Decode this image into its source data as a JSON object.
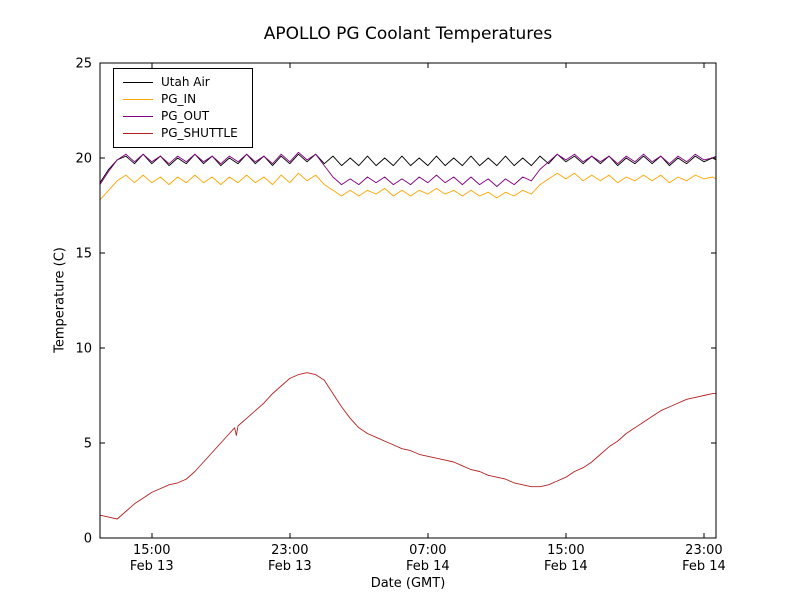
{
  "chart_data": {
    "type": "line",
    "title": "APOLLO PG Coolant Temperatures",
    "xlabel": "Date (GMT)",
    "ylabel": "Temperature (C)",
    "ylim": [
      0,
      25
    ],
    "y_ticks": [
      0,
      5,
      10,
      15,
      20,
      25
    ],
    "xlim_hours": [
      12.0,
      47.7
    ],
    "x_ticks": [
      {
        "hour": 15,
        "time": "15:00",
        "date": "Feb 13"
      },
      {
        "hour": 23,
        "time": "23:00",
        "date": "Feb 13"
      },
      {
        "hour": 31,
        "time": "07:00",
        "date": "Feb 14"
      },
      {
        "hour": 39,
        "time": "15:00",
        "date": "Feb 14"
      },
      {
        "hour": 47,
        "time": "23:00",
        "date": "Feb 14"
      }
    ],
    "grid": false,
    "legend_position": "upper-left",
    "axis_color": "#000000",
    "x_shared": [
      12.0,
      12.5,
      13.0,
      13.5,
      14.0,
      14.5,
      15.0,
      15.5,
      16.0,
      16.5,
      17.0,
      17.5,
      18.0,
      18.5,
      19.0,
      19.5,
      20.0,
      20.5,
      21.0,
      21.5,
      22.0,
      22.5,
      23.0,
      23.5,
      24.0,
      24.5,
      25.0,
      25.5,
      26.0,
      26.5,
      27.0,
      27.5,
      28.0,
      28.5,
      29.0,
      29.5,
      30.0,
      30.5,
      31.0,
      31.5,
      32.0,
      32.5,
      33.0,
      33.5,
      34.0,
      34.5,
      35.0,
      35.5,
      36.0,
      36.5,
      37.0,
      37.5,
      38.0,
      38.5,
      39.0,
      39.5,
      40.0,
      40.5,
      41.0,
      41.5,
      42.0,
      42.5,
      43.0,
      43.5,
      44.0,
      44.5,
      45.0,
      45.5,
      46.0,
      46.5,
      47.0,
      47.5,
      47.7
    ],
    "series": [
      {
        "name": "Utah Air",
        "color": "#000000",
        "y": [
          18.7,
          19.4,
          19.9,
          20.1,
          19.7,
          20.2,
          19.7,
          20.1,
          19.6,
          20.0,
          19.7,
          20.2,
          19.7,
          20.1,
          19.6,
          20.0,
          19.7,
          20.2,
          19.7,
          20.1,
          19.6,
          20.1,
          19.7,
          20.2,
          19.8,
          20.2,
          19.7,
          20.1,
          19.6,
          20.0,
          19.6,
          20.1,
          19.6,
          20.0,
          19.6,
          20.1,
          19.6,
          20.0,
          19.6,
          20.1,
          19.6,
          20.0,
          19.6,
          20.1,
          19.6,
          20.0,
          19.6,
          20.1,
          19.6,
          20.0,
          19.6,
          20.1,
          19.7,
          20.2,
          19.8,
          20.1,
          19.7,
          20.1,
          19.7,
          20.1,
          19.6,
          20.0,
          19.7,
          20.1,
          19.7,
          20.1,
          19.6,
          20.0,
          19.7,
          20.1,
          19.8,
          20.0,
          19.9
        ]
      },
      {
        "name": "PG_IN",
        "color": "#FFA500",
        "y": [
          17.8,
          18.3,
          18.8,
          19.1,
          18.7,
          19.1,
          18.7,
          19.0,
          18.6,
          19.0,
          18.7,
          19.1,
          18.7,
          19.0,
          18.6,
          19.0,
          18.7,
          19.1,
          18.7,
          19.0,
          18.6,
          19.1,
          18.7,
          19.2,
          18.8,
          19.1,
          18.6,
          18.3,
          18.0,
          18.3,
          18.0,
          18.3,
          18.1,
          18.4,
          18.0,
          18.3,
          18.0,
          18.3,
          18.1,
          18.4,
          18.1,
          18.3,
          18.0,
          18.3,
          18.0,
          18.2,
          17.9,
          18.2,
          18.0,
          18.3,
          18.1,
          18.6,
          18.9,
          19.2,
          18.9,
          19.2,
          18.8,
          19.1,
          18.8,
          19.1,
          18.7,
          19.0,
          18.8,
          19.1,
          18.8,
          19.1,
          18.7,
          19.0,
          18.8,
          19.1,
          18.9,
          19.0,
          18.9
        ]
      },
      {
        "name": "PG_OUT",
        "color": "#800080",
        "y": [
          18.6,
          19.3,
          19.9,
          20.2,
          19.8,
          20.2,
          19.8,
          20.1,
          19.7,
          20.1,
          19.8,
          20.2,
          19.8,
          20.1,
          19.7,
          20.1,
          19.8,
          20.2,
          19.8,
          20.1,
          19.7,
          20.2,
          19.8,
          20.3,
          19.9,
          20.2,
          19.6,
          19.0,
          18.6,
          18.9,
          18.6,
          19.0,
          18.7,
          19.0,
          18.6,
          18.9,
          18.6,
          19.0,
          18.7,
          19.1,
          18.7,
          19.0,
          18.6,
          19.0,
          18.6,
          18.9,
          18.5,
          18.9,
          18.6,
          19.0,
          18.8,
          19.4,
          19.8,
          20.2,
          19.9,
          20.2,
          19.8,
          20.1,
          19.8,
          20.1,
          19.7,
          20.1,
          19.8,
          20.2,
          19.8,
          20.1,
          19.7,
          20.1,
          19.8,
          20.2,
          19.9,
          20.0,
          20.1
        ]
      },
      {
        "name": "PG_SHUTTLE",
        "color": "#B22222",
        "x": [
          12.0,
          12.5,
          13.0,
          13.5,
          14.0,
          14.5,
          15.0,
          15.5,
          16.0,
          16.5,
          17.0,
          17.5,
          18.0,
          18.5,
          19.0,
          19.5,
          19.8,
          19.9,
          20.0,
          20.5,
          21.0,
          21.5,
          22.0,
          22.5,
          23.0,
          23.5,
          24.0,
          24.5,
          25.0,
          25.5,
          26.0,
          26.5,
          27.0,
          27.5,
          28.0,
          28.5,
          29.0,
          29.5,
          30.0,
          30.5,
          31.0,
          31.5,
          32.0,
          32.5,
          33.0,
          33.5,
          34.0,
          34.5,
          35.0,
          35.5,
          36.0,
          36.5,
          37.0,
          37.5,
          38.0,
          38.5,
          39.0,
          39.5,
          40.0,
          40.5,
          41.0,
          41.5,
          42.0,
          42.5,
          43.0,
          43.5,
          44.0,
          44.5,
          45.0,
          45.5,
          46.0,
          46.5,
          47.0,
          47.5,
          47.7
        ],
        "y": [
          1.2,
          1.1,
          1.0,
          1.4,
          1.8,
          2.1,
          2.4,
          2.6,
          2.8,
          2.9,
          3.1,
          3.5,
          4.0,
          4.5,
          5.0,
          5.5,
          5.8,
          5.4,
          5.9,
          6.3,
          6.7,
          7.1,
          7.6,
          8.0,
          8.4,
          8.6,
          8.7,
          8.6,
          8.3,
          7.6,
          6.9,
          6.3,
          5.8,
          5.5,
          5.3,
          5.1,
          4.9,
          4.7,
          4.6,
          4.4,
          4.3,
          4.2,
          4.1,
          4.0,
          3.8,
          3.6,
          3.5,
          3.3,
          3.2,
          3.1,
          2.9,
          2.8,
          2.7,
          2.7,
          2.8,
          3.0,
          3.2,
          3.5,
          3.7,
          4.0,
          4.4,
          4.8,
          5.1,
          5.5,
          5.8,
          6.1,
          6.4,
          6.7,
          6.9,
          7.1,
          7.3,
          7.4,
          7.5,
          7.6,
          7.6
        ]
      }
    ]
  }
}
